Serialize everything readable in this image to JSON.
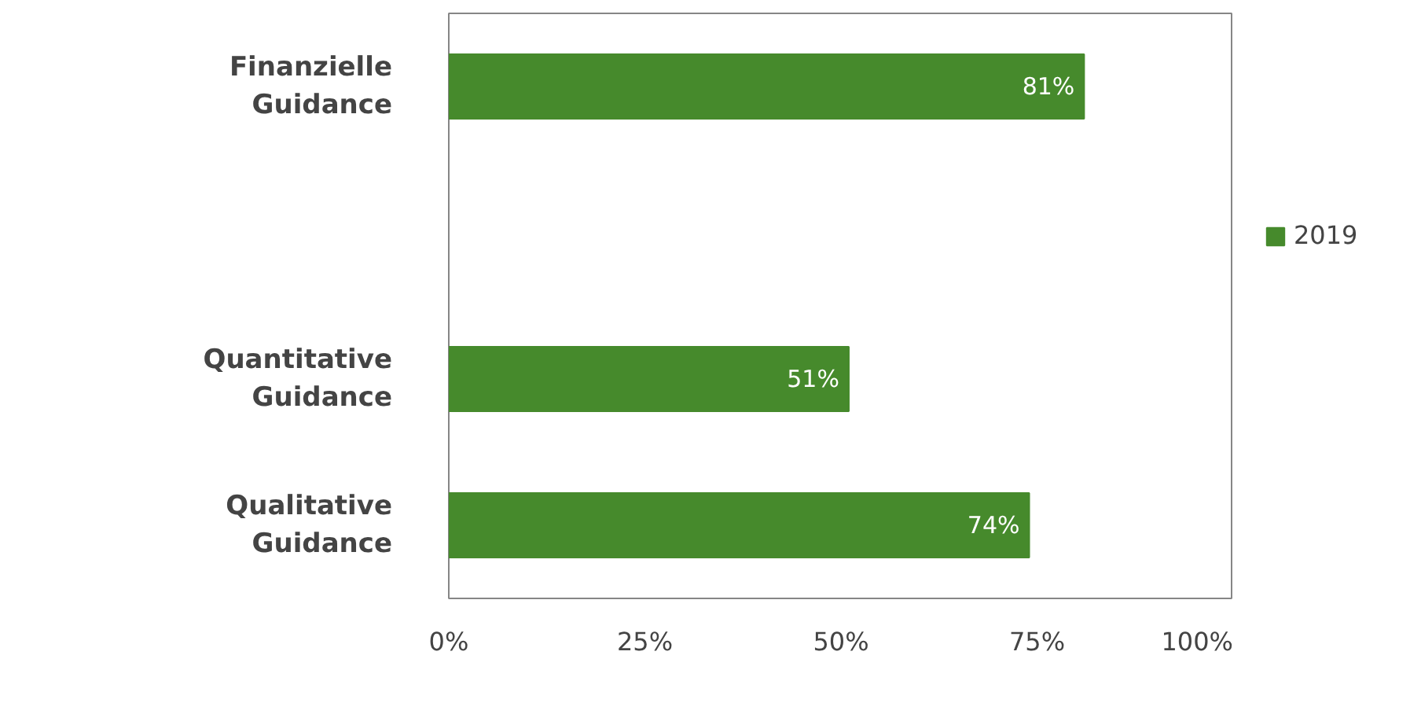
{
  "chart_data": {
    "type": "bar",
    "orientation": "horizontal",
    "categories": [
      "Finanzielle Guidance",
      null,
      "Quantitative Guidance",
      "Qualitative Guidance"
    ],
    "series": [
      {
        "name": "2019",
        "color": "#468a2c",
        "values": [
          81,
          null,
          51,
          74
        ],
        "value_labels": [
          "81%",
          null,
          "51%",
          "74%"
        ]
      }
    ],
    "xlim": [
      0,
      100
    ],
    "xticks": [
      {
        "value": 0,
        "label": "0%"
      },
      {
        "value": 25,
        "label": "25%"
      },
      {
        "value": 50,
        "label": "50%"
      },
      {
        "value": 75,
        "label": "75%"
      },
      {
        "value": 100,
        "label": "100%"
      }
    ],
    "grid": false,
    "legend": "right"
  }
}
